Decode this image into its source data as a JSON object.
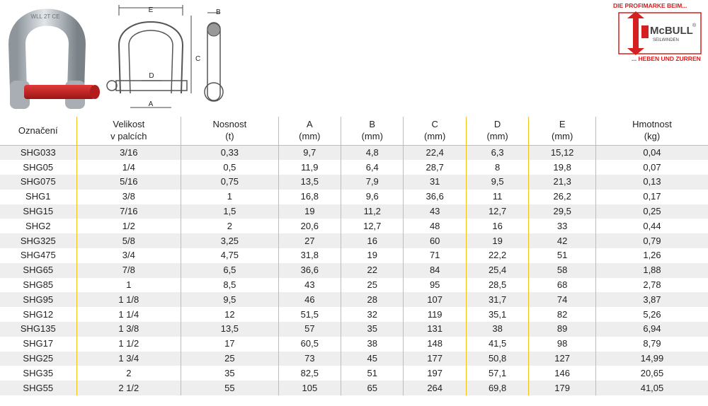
{
  "logo": {
    "tagline_top": "DIE PROFIMARKE BEIM...",
    "brand": "McBULL",
    "brand_mark": "®",
    "brand_sub": "SEILWINDEN",
    "tagline_bottom": "... HEBEN UND ZURREN"
  },
  "drawing": {
    "label_a": "A",
    "label_b": "B",
    "label_c": "C",
    "label_d": "D",
    "label_e": "E"
  },
  "photo": {
    "stamp": "WLL 2T CE"
  },
  "colors": {
    "accent": "#f0c020",
    "row_shade": "#eeeeee",
    "logo_red": "#d42020"
  },
  "table": {
    "headers": [
      [
        "Označení",
        ""
      ],
      [
        "Velikost",
        "v palcích"
      ],
      [
        "Nosnost",
        "(t)"
      ],
      [
        "A",
        "(mm)"
      ],
      [
        "B",
        "(mm)"
      ],
      [
        "C",
        "(mm)"
      ],
      [
        "D",
        "(mm)"
      ],
      [
        "E",
        "(mm)"
      ],
      [
        "Hmotnost",
        "(kg)"
      ]
    ],
    "rows": [
      [
        "SHG033",
        "3/16",
        "0,33",
        "9,7",
        "4,8",
        "22,4",
        "6,3",
        "15,12",
        "0,04"
      ],
      [
        "SHG05",
        "1/4",
        "0,5",
        "11,9",
        "6,4",
        "28,7",
        "8",
        "19,8",
        "0,07"
      ],
      [
        "SHG075",
        "5/16",
        "0,75",
        "13,5",
        "7,9",
        "31",
        "9,5",
        "21,3",
        "0,13"
      ],
      [
        "SHG1",
        "3/8",
        "1",
        "16,8",
        "9,6",
        "36,6",
        "11",
        "26,2",
        "0,17"
      ],
      [
        "SHG15",
        "7/16",
        "1,5",
        "19",
        "11,2",
        "43",
        "12,7",
        "29,5",
        "0,25"
      ],
      [
        "SHG2",
        "1/2",
        "2",
        "20,6",
        "12,7",
        "48",
        "16",
        "33",
        "0,44"
      ],
      [
        "SHG325",
        "5/8",
        "3,25",
        "27",
        "16",
        "60",
        "19",
        "42",
        "0,79"
      ],
      [
        "SHG475",
        "3/4",
        "4,75",
        "31,8",
        "19",
        "71",
        "22,2",
        "51",
        "1,26"
      ],
      [
        "SHG65",
        "7/8",
        "6,5",
        "36,6",
        "22",
        "84",
        "25,4",
        "58",
        "1,88"
      ],
      [
        "SHG85",
        "1",
        "8,5",
        "43",
        "25",
        "95",
        "28,5",
        "68",
        "2,78"
      ],
      [
        "SHG95",
        "1 1/8",
        "9,5",
        "46",
        "28",
        "107",
        "31,7",
        "74",
        "3,87"
      ],
      [
        "SHG12",
        "1 1/4",
        "12",
        "51,5",
        "32",
        "119",
        "35,1",
        "82",
        "5,26"
      ],
      [
        "SHG135",
        "1 3/8",
        "13,5",
        "57",
        "35",
        "131",
        "38",
        "89",
        "6,94"
      ],
      [
        "SHG17",
        "1 1/2",
        "17",
        "60,5",
        "38",
        "148",
        "41,5",
        "98",
        "8,79"
      ],
      [
        "SHG25",
        "1 3/4",
        "25",
        "73",
        "45",
        "177",
        "50,8",
        "127",
        "14,99"
      ],
      [
        "SHG35",
        "2",
        "35",
        "82,5",
        "51",
        "197",
        "57,1",
        "146",
        "20,65"
      ],
      [
        "SHG55",
        "2 1/2",
        "55",
        "105",
        "65",
        "264",
        "69,8",
        "179",
        "41,05"
      ]
    ]
  }
}
